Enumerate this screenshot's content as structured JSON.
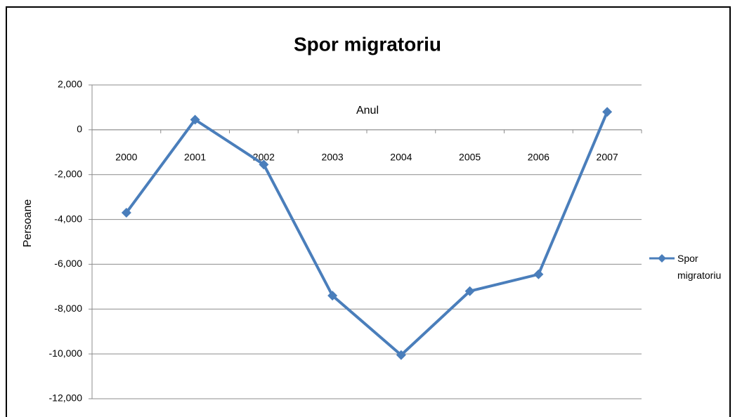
{
  "chart_data": {
    "type": "line",
    "title": "Spor migratoriu",
    "x_label": "Anul",
    "y_label": "Persoane",
    "categories": [
      "2000",
      "2001",
      "2002",
      "2003",
      "2004",
      "2005",
      "2006",
      "2007"
    ],
    "series": [
      {
        "name": "Spor migratoriu",
        "color": "#4a7ebb",
        "values": [
          -3700,
          450,
          -1550,
          -7400,
          -10050,
          -7200,
          -6450,
          800
        ]
      }
    ],
    "ylim": [
      -12000,
      2000
    ],
    "yticks": [
      {
        "value": -12000,
        "label": "-12,000"
      },
      {
        "value": -10000,
        "label": "-10,000"
      },
      {
        "value": -8000,
        "label": "-8,000"
      },
      {
        "value": -6000,
        "label": "-6,000"
      },
      {
        "value": -4000,
        "label": "-4,000"
      },
      {
        "value": -2000,
        "label": "-2,000"
      },
      0,
      {
        "value": 2000,
        "label": "2,000"
      }
    ],
    "grid": true,
    "legend": "right"
  }
}
